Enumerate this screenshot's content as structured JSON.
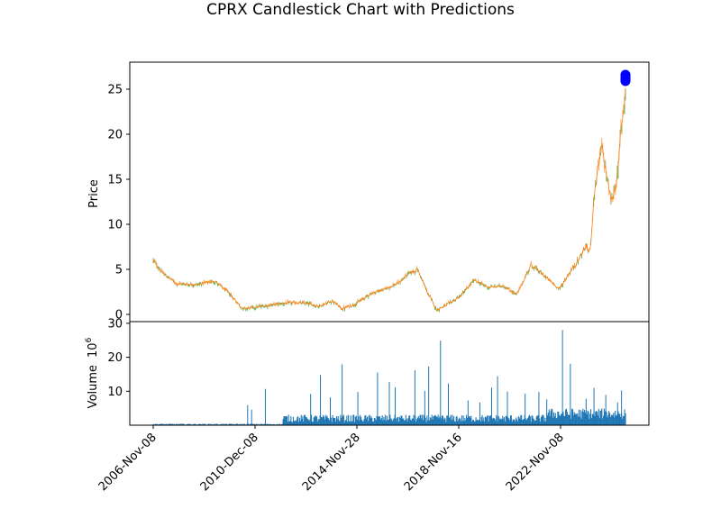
{
  "chart_data": {
    "title": "CPRX Candlestick Chart with Predictions",
    "price_panel": {
      "type": "candlestick",
      "ylabel": "Price",
      "ylim": [
        -0.8,
        28.0
      ],
      "yticks": [
        0,
        5,
        10,
        15,
        20,
        25
      ],
      "up_color": "#2ca02c",
      "down_color": "#ff7f0e",
      "close_line_color": "#ff7f0e",
      "close_series_anchors": [
        {
          "t": 0.0,
          "v": 6.0
        },
        {
          "t": 0.02,
          "v": 4.6
        },
        {
          "t": 0.05,
          "v": 3.4
        },
        {
          "t": 0.09,
          "v": 3.3
        },
        {
          "t": 0.13,
          "v": 3.7
        },
        {
          "t": 0.16,
          "v": 2.4
        },
        {
          "t": 0.19,
          "v": 0.6
        },
        {
          "t": 0.23,
          "v": 0.9
        },
        {
          "t": 0.27,
          "v": 1.2
        },
        {
          "t": 0.3,
          "v": 1.3
        },
        {
          "t": 0.33,
          "v": 1.2
        },
        {
          "t": 0.35,
          "v": 0.9
        },
        {
          "t": 0.38,
          "v": 1.5
        },
        {
          "t": 0.4,
          "v": 0.6
        },
        {
          "t": 0.43,
          "v": 1.2
        },
        {
          "t": 0.46,
          "v": 2.3
        },
        {
          "t": 0.49,
          "v": 2.8
        },
        {
          "t": 0.52,
          "v": 3.5
        },
        {
          "t": 0.54,
          "v": 4.5
        },
        {
          "t": 0.56,
          "v": 5.0
        },
        {
          "t": 0.58,
          "v": 2.5
        },
        {
          "t": 0.6,
          "v": 0.5
        },
        {
          "t": 0.62,
          "v": 1.0
        },
        {
          "t": 0.65,
          "v": 2.0
        },
        {
          "t": 0.68,
          "v": 3.8
        },
        {
          "t": 0.71,
          "v": 3.0
        },
        {
          "t": 0.74,
          "v": 3.2
        },
        {
          "t": 0.77,
          "v": 2.2
        },
        {
          "t": 0.8,
          "v": 5.5
        },
        {
          "t": 0.83,
          "v": 4.2
        },
        {
          "t": 0.86,
          "v": 2.8
        },
        {
          "t": 0.88,
          "v": 4.5
        },
        {
          "t": 0.9,
          "v": 6.0
        },
        {
          "t": 0.915,
          "v": 7.5
        },
        {
          "t": 0.925,
          "v": 7.0
        },
        {
          "t": 0.935,
          "v": 14.0
        },
        {
          "t": 0.95,
          "v": 18.5
        },
        {
          "t": 0.96,
          "v": 15.5
        },
        {
          "t": 0.97,
          "v": 12.5
        },
        {
          "t": 0.98,
          "v": 14.5
        },
        {
          "t": 0.985,
          "v": 16.0
        },
        {
          "t": 0.99,
          "v": 20.5
        },
        {
          "t": 0.995,
          "v": 22.5
        },
        {
          "t": 1.0,
          "v": 25.0
        }
      ],
      "predictions": {
        "color": "#0000ff",
        "values": [
          26.6,
          26.5,
          26.4,
          26.3,
          26.2,
          26.1,
          26.0,
          25.9
        ]
      }
    },
    "volume_panel": {
      "type": "bar",
      "ylabel": "Volume",
      "ylabel_multiplier": "10",
      "ylabel_exponent": "6",
      "ylim": [
        0,
        30.5
      ],
      "yticks": [
        10,
        20,
        30
      ],
      "bar_color": "#1f77b4",
      "spikes": [
        {
          "t": 0.24,
          "v": 5.9
        },
        {
          "t": 0.25,
          "v": 4.6
        },
        {
          "t": 0.285,
          "v": 10.7
        },
        {
          "t": 0.4,
          "v": 9.2
        },
        {
          "t": 0.425,
          "v": 14.8
        },
        {
          "t": 0.45,
          "v": 8.2
        },
        {
          "t": 0.48,
          "v": 17.9
        },
        {
          "t": 0.52,
          "v": 9.8
        },
        {
          "t": 0.57,
          "v": 15.5
        },
        {
          "t": 0.6,
          "v": 12.8
        },
        {
          "t": 0.615,
          "v": 11.2
        },
        {
          "t": 0.665,
          "v": 16.2
        },
        {
          "t": 0.69,
          "v": 10.1
        },
        {
          "t": 0.7,
          "v": 17.3
        },
        {
          "t": 0.73,
          "v": 24.9
        },
        {
          "t": 0.75,
          "v": 12.3
        },
        {
          "t": 0.8,
          "v": 7.3
        },
        {
          "t": 0.83,
          "v": 6.7
        },
        {
          "t": 0.86,
          "v": 11.1
        },
        {
          "t": 0.875,
          "v": 14.4
        },
        {
          "t": 0.9,
          "v": 9.9
        },
        {
          "t": 0.945,
          "v": 9.3
        },
        {
          "t": 0.98,
          "v": 9.8
        },
        {
          "t": 1.0,
          "v": 7.6
        },
        {
          "t": 1.04,
          "v": 28.0
        },
        {
          "t": 1.06,
          "v": 18.1
        },
        {
          "t": 1.1,
          "v": 7.8
        },
        {
          "t": 1.12,
          "v": 11.0
        },
        {
          "t": 1.15,
          "v": 8.9
        },
        {
          "t": 1.18,
          "v": 6.7
        },
        {
          "t": 1.19,
          "v": 10.2
        }
      ]
    },
    "x_axis": {
      "tick_labels": [
        "2006-Nov-08",
        "2010-Dec-08",
        "2014-Nov-28",
        "2018-Nov-16",
        "2022-Nov-08"
      ]
    }
  }
}
